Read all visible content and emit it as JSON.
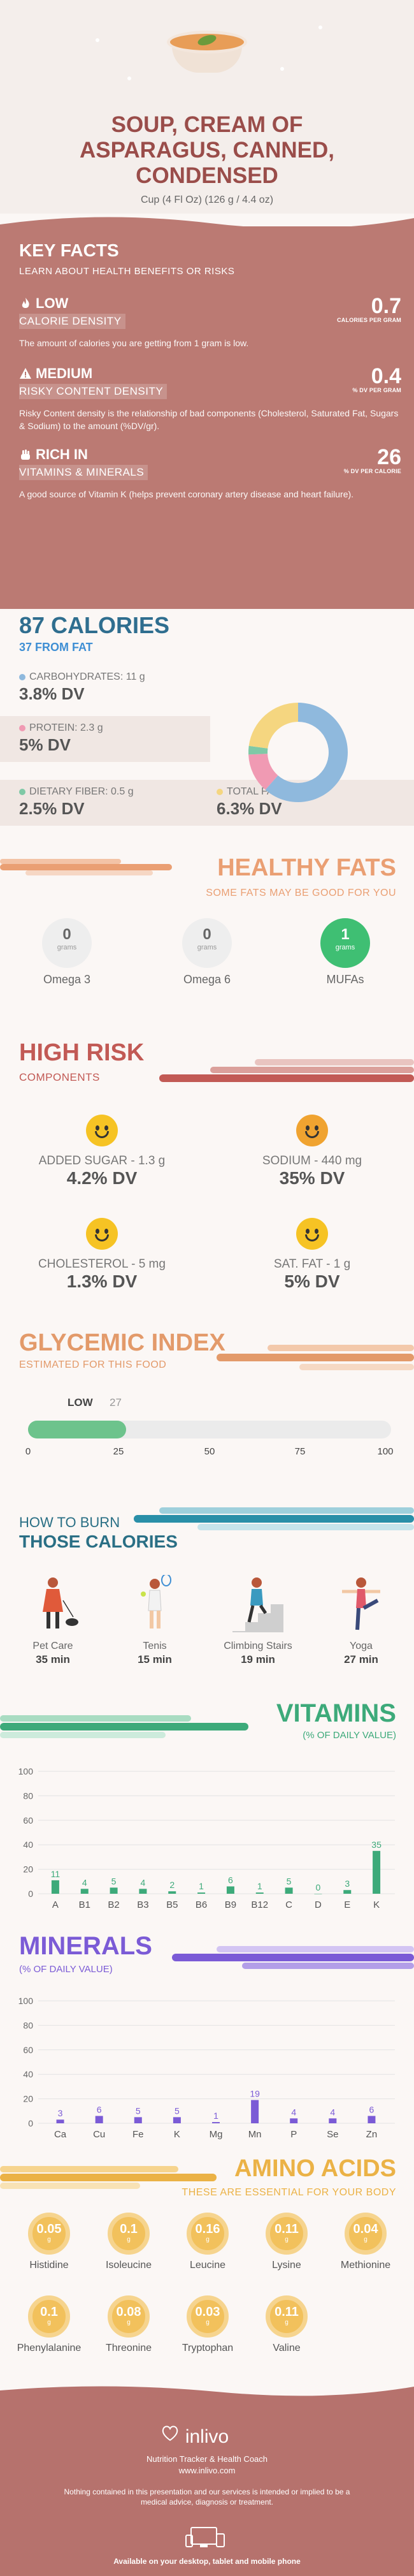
{
  "header": {
    "title_lines": [
      "SOUP, CREAM OF",
      "ASPARAGUS, CANNED,",
      "CONDENSED"
    ],
    "serving": "Cup (4 Fl Oz) (126 g / 4.4 oz)"
  },
  "key_facts": {
    "title": "KEY FACTS",
    "subtitle": "LEARN ABOUT HEALTH BENEFITS OR RISKS",
    "items": [
      {
        "level": "LOW",
        "label": "CALORIE DENSITY",
        "value": "0.7",
        "unit": "CALORIES PER GRAM",
        "desc": "The amount of calories you are getting from 1 gram is low."
      },
      {
        "level": "MEDIUM",
        "label": "RISKY CONTENT DENSITY",
        "value": "0.4",
        "unit": "% DV PER GRAM",
        "desc": "Risky Content density is the relationship of bad components (Cholesterol, Saturated Fat, Sugars & Sodium) to the amount (%DV/gr)."
      },
      {
        "level": "RICH IN",
        "label": "VITAMINS & MINERALS",
        "value": "26",
        "unit": "% DV PER CALORIE",
        "desc": "A good source of Vitamin K (helps prevent coronary artery disease and heart failure)."
      }
    ]
  },
  "calories": {
    "title": "87 CALORIES",
    "subtitle": "37 FROM FAT",
    "nutrients": [
      {
        "label": "CARBOHYDRATES: 11 g",
        "dv": "3.8% DV",
        "color": "#8fb9dd"
      },
      {
        "label": "PROTEIN: 2.3 g",
        "dv": "5% DV",
        "color": "#f09ab3"
      },
      {
        "label": "DIETARY FIBER: 0.5 g",
        "dv": "2.5% DV",
        "color": "#7fc9a6"
      },
      {
        "label": "TOTAL FAT: 4.1 g",
        "dv": "6.3% DV",
        "color": "#f5d680"
      }
    ],
    "donut": [
      {
        "name": "Carbohydrates",
        "value": 11,
        "color": "#8fb9dd"
      },
      {
        "name": "Protein",
        "value": 2.3,
        "color": "#f09ab3"
      },
      {
        "name": "Dietary Fiber",
        "value": 0.5,
        "color": "#7fc9a6"
      },
      {
        "name": "Total Fat",
        "value": 4.1,
        "color": "#f5d680"
      }
    ]
  },
  "healthy_fats": {
    "title": "HEALTHY FATS",
    "subtitle": "SOME FATS MAY BE GOOD FOR YOU",
    "items": [
      {
        "value": "0",
        "unit": "grams",
        "name": "Omega 3"
      },
      {
        "value": "0",
        "unit": "grams",
        "name": "Omega 6"
      },
      {
        "value": "1",
        "unit": "grams",
        "name": "MUFAs"
      }
    ]
  },
  "high_risk": {
    "title": "HIGH RISK",
    "subtitle": "COMPONENTS",
    "items": [
      {
        "label": "ADDED SUGAR - 1.3 g",
        "dv": "4.2% DV"
      },
      {
        "label": "SODIUM - 440 mg",
        "dv": "35% DV"
      },
      {
        "label": "CHOLESTEROL - 5 mg",
        "dv": "1.3% DV"
      },
      {
        "label": "SAT. FAT - 1 g",
        "dv": "5% DV"
      }
    ]
  },
  "glycemic": {
    "title": "GLYCEMIC INDEX",
    "subtitle": "ESTIMATED FOR THIS FOOD",
    "level": "LOW",
    "value": "27",
    "value_num": 27,
    "ticks": [
      "0",
      "25",
      "50",
      "75",
      "100"
    ]
  },
  "burn": {
    "title_line1": "HOW TO BURN",
    "title_line2": "THOSE CALORIES",
    "activities": [
      {
        "name": "Pet Care",
        "minutes": "35 min"
      },
      {
        "name": "Tenis",
        "minutes": "15 min"
      },
      {
        "name": "Climbing Stairs",
        "minutes": "19 min"
      },
      {
        "name": "Yoga",
        "minutes": "27 min"
      }
    ]
  },
  "chart_data": [
    {
      "type": "bar",
      "title": "VITAMINS",
      "subtitle": "(% OF DAILY VALUE)",
      "categories": [
        "A",
        "B1",
        "B2",
        "B3",
        "B5",
        "B6",
        "B9",
        "B12",
        "C",
        "D",
        "E",
        "K"
      ],
      "values": [
        11,
        4,
        5,
        4,
        2,
        1,
        6,
        1,
        5,
        0,
        3,
        35
      ],
      "ylim": [
        0,
        100
      ],
      "yticks": [
        "0",
        "20",
        "40",
        "60",
        "80",
        "100"
      ],
      "grid": true,
      "color": "#3daa7a"
    },
    {
      "type": "bar",
      "title": "MINERALS",
      "subtitle": "(% OF DAILY VALUE)",
      "categories": [
        "Ca",
        "Cu",
        "Fe",
        "K",
        "Mg",
        "Mn",
        "P",
        "Se",
        "Zn"
      ],
      "values": [
        3,
        6,
        5,
        5,
        1,
        19,
        4,
        4,
        6
      ],
      "ylim": [
        0,
        100
      ],
      "yticks": [
        "0",
        "20",
        "40",
        "60",
        "80",
        "100"
      ],
      "grid": true,
      "color": "#7b5bd6"
    }
  ],
  "amino_acids": {
    "title": "AMINO ACIDS",
    "subtitle": "THESE ARE ESSENTIAL FOR YOUR BODY",
    "unit": "g",
    "items": [
      {
        "value": "0.05",
        "name": "Histidine"
      },
      {
        "value": "0.1",
        "name": "Isoleucine"
      },
      {
        "value": "0.16",
        "name": "Leucine"
      },
      {
        "value": "0.11",
        "name": "Lysine"
      },
      {
        "value": "0.04",
        "name": "Methionine"
      },
      {
        "value": "0.1",
        "name": "Phenylalanine"
      },
      {
        "value": "0.08",
        "name": "Threonine"
      },
      {
        "value": "0.03",
        "name": "Tryptophan"
      },
      {
        "value": "0.11",
        "name": "Valine"
      }
    ]
  },
  "footer": {
    "brand": "inlivo",
    "tagline": "Nutrition Tracker & Health Coach",
    "site": "www.inlivo.com",
    "disclaimer": "Nothing contained in this presentation and our services is intended or implied to be a medical advice, diagnosis or treatment.",
    "availability": "Available on your desktop, tablet and mobile phone"
  }
}
